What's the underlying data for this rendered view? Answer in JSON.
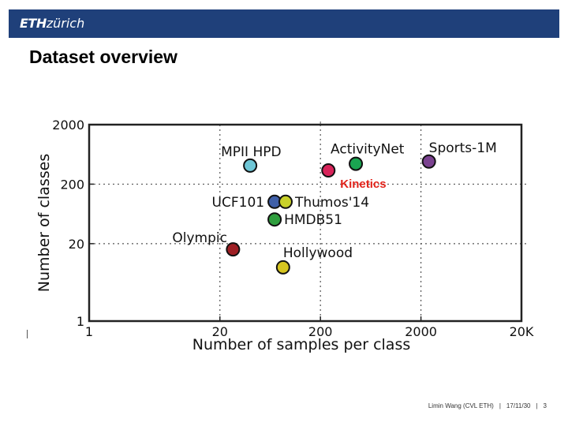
{
  "header": {
    "logo_bold": "ETH",
    "logo_light": "zürich",
    "title": "Dataset overview"
  },
  "footer": {
    "author": "Limin Wang (CVL ETH)",
    "date": "17/11/30",
    "page": "3"
  },
  "chart_data": {
    "type": "scatter",
    "title": "",
    "xlabel": "Number of samples per class",
    "ylabel": "Number of classes",
    "xscale": "log",
    "yscale": "log",
    "xlim": [
      1,
      20000
    ],
    "ylim": [
      1,
      2000
    ],
    "grid": true,
    "x_ticks": [
      {
        "value": 1,
        "label": "1"
      },
      {
        "value": 20,
        "label": "20"
      },
      {
        "value": 200,
        "label": "200"
      },
      {
        "value": 2000,
        "label": "2000"
      },
      {
        "value": 20000,
        "label": "20K"
      }
    ],
    "y_ticks": [
      {
        "value": 1,
        "label": "1"
      },
      {
        "value": 20,
        "label": "20"
      },
      {
        "value": 200,
        "label": "200"
      },
      {
        "value": 2000,
        "label": "2000"
      }
    ],
    "points": [
      {
        "name": "MPII HPD",
        "x": 40,
        "y": 410,
        "color": "#6ec6d6",
        "label_pos": "above"
      },
      {
        "name": "ActivityNet",
        "x": 450,
        "y": 440,
        "color": "#1aa551",
        "label_pos": "above-left"
      },
      {
        "name": "Sports-1M",
        "x": 2400,
        "y": 480,
        "color": "#7b4290",
        "label_pos": "above-right"
      },
      {
        "name": "Kinetics",
        "x": 240,
        "y": 340,
        "color": "#d8245a",
        "label_pos": "below-right",
        "highlight": true
      },
      {
        "name": "UCF101",
        "x": 70,
        "y": 101,
        "color": "#3f5fa8",
        "label_pos": "left"
      },
      {
        "name": "Thumos'14",
        "x": 90,
        "y": 101,
        "color": "#c9d12a",
        "label_pos": "right"
      },
      {
        "name": "HMDB51",
        "x": 70,
        "y": 51,
        "color": "#2f9e3e",
        "label_pos": "right"
      },
      {
        "name": "Olympic",
        "x": 27,
        "y": 16,
        "color": "#9e1f24",
        "label_pos": "above-left"
      },
      {
        "name": "Hollywood",
        "x": 85,
        "y": 8,
        "color": "#d6c520",
        "label_pos": "above-right"
      }
    ]
  }
}
